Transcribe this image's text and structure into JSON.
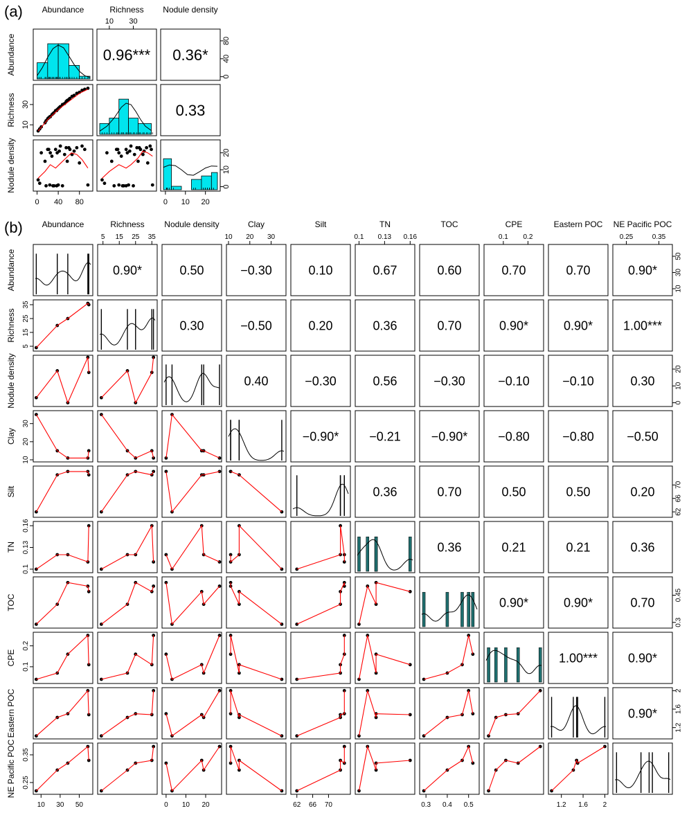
{
  "chart_data": [
    {
      "panel_label": "(a)",
      "type": "scatter_matrix",
      "variables": [
        "Abundance",
        "Richness",
        "Nodule density"
      ],
      "axes": {
        "Abundance": {
          "range": [
            -2,
            100
          ],
          "ticks": [
            0,
            40,
            80
          ]
        },
        "Richness": {
          "range": [
            2,
            47
          ],
          "ticks": [
            10,
            30
          ]
        },
        "Nodule density": {
          "range": [
            -1,
            26
          ],
          "ticks": [
            0,
            10,
            20
          ]
        }
      },
      "correlations": [
        {
          "row": 0,
          "col": 1,
          "label": "0.96***"
        },
        {
          "row": 0,
          "col": 2,
          "label": "0.36*"
        },
        {
          "row": 1,
          "col": 2,
          "label": "0.33"
        }
      ],
      "histograms": [
        {
          "var": "Abundance",
          "bins": [
            [
              0,
              20,
              6
            ],
            [
              20,
              40,
              13
            ],
            [
              40,
              60,
              13
            ],
            [
              60,
              80,
              5
            ],
            [
              80,
              100,
              1
            ]
          ],
          "ymax": 14,
          "density": [
            [
              0,
              1.2
            ],
            [
              10,
              4.2
            ],
            [
              20,
              8
            ],
            [
              30,
              11.2
            ],
            [
              40,
              12.5
            ],
            [
              50,
              11.5
            ],
            [
              60,
              8.5
            ],
            [
              70,
              5.3
            ],
            [
              80,
              2.8
            ],
            [
              90,
              1.2
            ],
            [
              100,
              0.5
            ]
          ]
        },
        {
          "var": "Richness",
          "bins": [
            [
              2,
              10,
              4
            ],
            [
              10,
              18,
              6
            ],
            [
              18,
              26,
              13
            ],
            [
              26,
              34,
              6
            ],
            [
              34,
              45,
              4
            ]
          ],
          "ymax": 14,
          "density": [
            [
              2,
              1.2
            ],
            [
              8,
              3
            ],
            [
              14,
              6
            ],
            [
              20,
              10
            ],
            [
              24,
              11.5
            ],
            [
              28,
              11
            ],
            [
              32,
              8.5
            ],
            [
              36,
              5.5
            ],
            [
              40,
              3
            ],
            [
              45,
              1.4
            ]
          ]
        },
        {
          "var": "Nodule density",
          "bins": [
            [
              -1,
              3,
              9
            ],
            [
              3,
              8,
              1
            ],
            [
              8,
              13,
              0
            ],
            [
              13,
              18,
              3
            ],
            [
              18,
              23,
              4
            ],
            [
              23,
              26,
              5
            ]
          ],
          "ymax": 11,
          "density": [
            [
              -1,
              6.5
            ],
            [
              2,
              7.2
            ],
            [
              5,
              7
            ],
            [
              8,
              5.8
            ],
            [
              11,
              4.4
            ],
            [
              14,
              4.2
            ],
            [
              17,
              5.2
            ],
            [
              20,
              6.3
            ],
            [
              23,
              6.9
            ],
            [
              26,
              6.8
            ]
          ]
        }
      ],
      "scatter": {
        "Abundance": [
          2,
          5,
          8,
          15,
          17,
          20,
          22,
          24,
          25,
          28,
          30,
          32,
          35,
          37,
          38,
          40,
          42,
          44,
          48,
          52,
          55,
          57,
          60,
          62,
          66,
          70,
          75,
          80,
          85,
          90,
          96
        ],
        "Richness": [
          4,
          6,
          8,
          12,
          14,
          16,
          17,
          18,
          18,
          20,
          21,
          22,
          24,
          24,
          25,
          26,
          27,
          28,
          30,
          31,
          33,
          34,
          35,
          36,
          38,
          39,
          41,
          42,
          44,
          45,
          46
        ],
        "Nodule density": [
          4,
          2,
          20,
          15,
          0.5,
          22,
          22,
          1,
          20,
          18,
          0.5,
          0.5,
          22,
          0.5,
          20,
          1,
          21,
          24,
          0.5,
          19,
          23,
          15,
          23,
          22,
          19,
          21,
          23,
          14,
          24,
          22,
          1
        ]
      },
      "smooth": {
        "Richness~Abundance": [
          [
            2,
            4
          ],
          [
            20,
            15
          ],
          [
            40,
            25
          ],
          [
            60,
            33
          ],
          [
            80,
            41
          ],
          [
            96,
            45
          ]
        ],
        "Nodule density~Abundance": [
          [
            2,
            5
          ],
          [
            15,
            9
          ],
          [
            25,
            13
          ],
          [
            35,
            11
          ],
          [
            45,
            14
          ],
          [
            55,
            17
          ],
          [
            65,
            20
          ],
          [
            75,
            19
          ],
          [
            85,
            16
          ],
          [
            96,
            11
          ]
        ],
        "Nodule density~Richness": [
          [
            4,
            5
          ],
          [
            10,
            9
          ],
          [
            18,
            13
          ],
          [
            24,
            11
          ],
          [
            28,
            13
          ],
          [
            34,
            17
          ],
          [
            38,
            21
          ],
          [
            42,
            20
          ],
          [
            46,
            18
          ]
        ]
      }
    },
    {
      "panel_label": "(b)",
      "type": "scatter_matrix",
      "variables": [
        "Abundance",
        "Richness",
        "Nodule density",
        "Clay",
        "Silt",
        "TN",
        "TOC",
        "CPE",
        "Eastern POC",
        "NE Pacific POC"
      ],
      "axes": {
        "Abundance": {
          "range": [
            4,
            62
          ],
          "ticks": [
            10,
            30,
            50
          ],
          "bottom_ticks": [
            10,
            30,
            50
          ]
        },
        "Richness": {
          "range": [
            3,
            37
          ],
          "ticks": [
            5,
            15,
            25,
            35
          ],
          "top_ticks": [
            5,
            15,
            25,
            35
          ]
        },
        "Nodule density": {
          "range": [
            -1,
            27
          ],
          "ticks": [
            0,
            10,
            20
          ],
          "bottom_ticks": [
            0,
            10,
            20
          ]
        },
        "Clay": {
          "range": [
            10,
            36
          ],
          "ticks": [
            10,
            20,
            30
          ],
          "top_ticks": [
            10,
            20,
            30
          ]
        },
        "Silt": {
          "range": [
            61,
            75
          ],
          "ticks": [
            62,
            66,
            70
          ],
          "bottom_ticks": [
            62,
            66,
            70
          ]
        },
        "TN": {
          "range": [
            0.098,
            0.163
          ],
          "ticks": [
            0.1,
            0.13,
            0.16
          ],
          "top_ticks": [
            0.1,
            0.13,
            0.16
          ]
        },
        "TOC": {
          "range": [
            0.28,
            0.54
          ],
          "ticks": [
            0.3,
            0.45
          ],
          "bottom_ticks": [
            0.3,
            0.4,
            0.5
          ]
        },
        "CPE": {
          "range": [
            0.03,
            0.255
          ],
          "ticks": [
            0.1,
            0.2
          ],
          "top_ticks": [
            0.1,
            0.2
          ]
        },
        "Eastern POC": {
          "range": [
            1.0,
            2.02
          ],
          "ticks": [
            1.2,
            1.6,
            2.0
          ],
          "bottom_ticks": [
            1.2,
            1.6,
            2.0
          ]
        },
        "NE Pacific POC": {
          "range": [
            0.215,
            0.385
          ],
          "ticks": [
            0.25,
            0.35
          ],
          "top_ticks": [
            0.25,
            0.35
          ]
        }
      },
      "observations": {
        "Abundance": [
          5,
          27,
          38,
          59,
          60
        ],
        "Richness": [
          4,
          20,
          25,
          36,
          35
        ],
        "Nodule density": [
          3,
          19,
          0,
          27,
          18
        ],
        "Clay": [
          35,
          15,
          11,
          11,
          15
        ],
        "Silt": [
          62,
          73,
          74,
          74,
          73
        ],
        "TN": [
          0.1,
          0.12,
          0.12,
          0.11,
          0.16
        ],
        "TOC": [
          0.29,
          0.4,
          0.52,
          0.5,
          0.47
        ],
        "CPE": [
          0.04,
          0.07,
          0.16,
          0.25,
          0.11
        ],
        "Eastern POC": [
          1.02,
          1.42,
          1.5,
          2.0,
          1.48
        ],
        "NE Pacific POC": [
          0.22,
          0.295,
          0.32,
          0.38,
          0.33
        ]
      },
      "correlations": [
        {
          "row": 0,
          "col": 1,
          "label": "0.90*"
        },
        {
          "row": 0,
          "col": 2,
          "label": "0.50"
        },
        {
          "row": 0,
          "col": 3,
          "label": "−0.30"
        },
        {
          "row": 0,
          "col": 4,
          "label": "0.10"
        },
        {
          "row": 0,
          "col": 5,
          "label": "0.67"
        },
        {
          "row": 0,
          "col": 6,
          "label": "0.60"
        },
        {
          "row": 0,
          "col": 7,
          "label": "0.70"
        },
        {
          "row": 0,
          "col": 8,
          "label": "0.70"
        },
        {
          "row": 0,
          "col": 9,
          "label": "0.90*"
        },
        {
          "row": 1,
          "col": 2,
          "label": "0.30"
        },
        {
          "row": 1,
          "col": 3,
          "label": "−0.50"
        },
        {
          "row": 1,
          "col": 4,
          "label": "0.20"
        },
        {
          "row": 1,
          "col": 5,
          "label": "0.36"
        },
        {
          "row": 1,
          "col": 6,
          "label": "0.70"
        },
        {
          "row": 1,
          "col": 7,
          "label": "0.90*"
        },
        {
          "row": 1,
          "col": 8,
          "label": "0.90*"
        },
        {
          "row": 1,
          "col": 9,
          "label": "1.00***"
        },
        {
          "row": 2,
          "col": 3,
          "label": "0.40"
        },
        {
          "row": 2,
          "col": 4,
          "label": "−0.30"
        },
        {
          "row": 2,
          "col": 5,
          "label": "0.56"
        },
        {
          "row": 2,
          "col": 6,
          "label": "−0.30"
        },
        {
          "row": 2,
          "col": 7,
          "label": "−0.10"
        },
        {
          "row": 2,
          "col": 8,
          "label": "−0.10"
        },
        {
          "row": 2,
          "col": 9,
          "label": "0.30"
        },
        {
          "row": 3,
          "col": 4,
          "label": "−0.90*"
        },
        {
          "row": 3,
          "col": 5,
          "label": "−0.21"
        },
        {
          "row": 3,
          "col": 6,
          "label": "−0.90*"
        },
        {
          "row": 3,
          "col": 7,
          "label": "−0.80"
        },
        {
          "row": 3,
          "col": 8,
          "label": "−0.80"
        },
        {
          "row": 3,
          "col": 9,
          "label": "−0.50"
        },
        {
          "row": 4,
          "col": 5,
          "label": "0.36"
        },
        {
          "row": 4,
          "col": 6,
          "label": "0.70"
        },
        {
          "row": 4,
          "col": 7,
          "label": "0.50"
        },
        {
          "row": 4,
          "col": 8,
          "label": "0.50"
        },
        {
          "row": 4,
          "col": 9,
          "label": "0.20"
        },
        {
          "row": 5,
          "col": 6,
          "label": "0.36"
        },
        {
          "row": 5,
          "col": 7,
          "label": "0.21"
        },
        {
          "row": 5,
          "col": 8,
          "label": "0.21"
        },
        {
          "row": 5,
          "col": 9,
          "label": "0.36"
        },
        {
          "row": 6,
          "col": 7,
          "label": "0.90*"
        },
        {
          "row": 6,
          "col": 8,
          "label": "0.90*"
        },
        {
          "row": 6,
          "col": 9,
          "label": "0.70"
        },
        {
          "row": 7,
          "col": 8,
          "label": "1.00***"
        },
        {
          "row": 7,
          "col": 9,
          "label": "0.90*"
        },
        {
          "row": 8,
          "col": 9,
          "label": "0.90*"
        }
      ],
      "diagonal_bars": {
        "TN": [
          0.1,
          0.11,
          0.12,
          0.12,
          0.16
        ],
        "TOC": [
          0.29,
          0.4,
          0.47,
          0.5,
          0.52
        ],
        "CPE": [
          0.04,
          0.07,
          0.11,
          0.16,
          0.25
        ]
      },
      "colors": {
        "histogram_fill": "#00e5ee",
        "bar_fill": "#1f6f6f",
        "smooth_line": "#ff0000",
        "points": "#000000"
      }
    }
  ]
}
